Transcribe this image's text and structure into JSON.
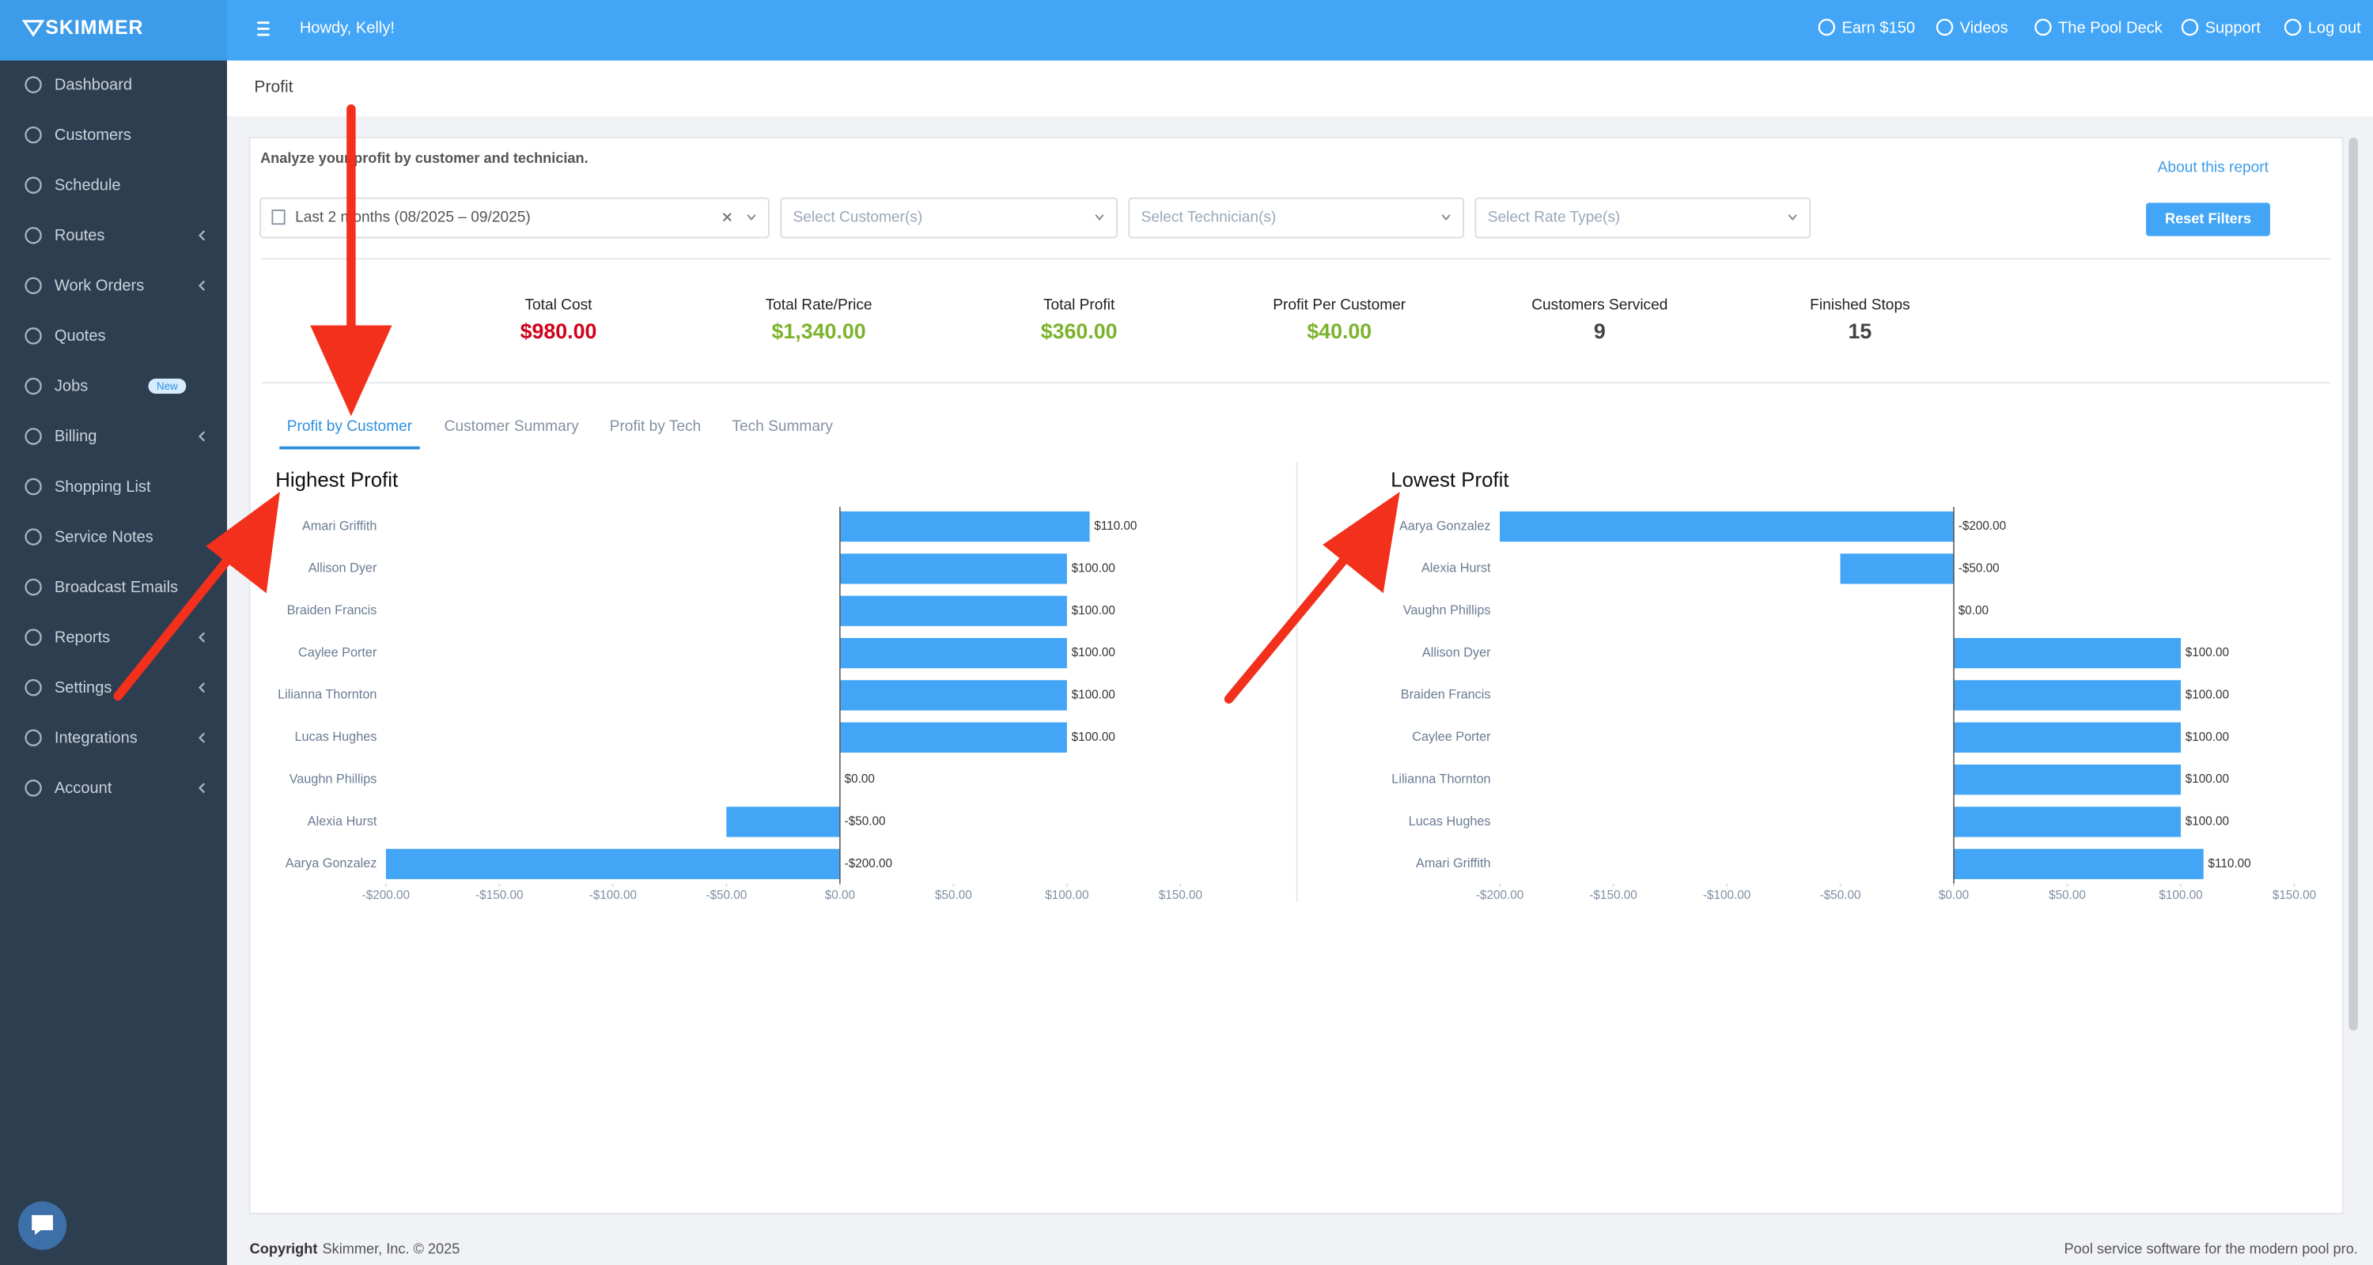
{
  "header": {
    "logo": "SKIMMER",
    "greeting": "Howdy, Kelly!",
    "nav": [
      "Earn $150",
      "Videos",
      "The Pool Deck",
      "Support",
      "Log out"
    ]
  },
  "sidebar": {
    "items": [
      {
        "label": "Dashboard"
      },
      {
        "label": "Customers"
      },
      {
        "label": "Schedule"
      },
      {
        "label": "Routes",
        "submenu": true
      },
      {
        "label": "Work Orders",
        "submenu": true
      },
      {
        "label": "Quotes"
      },
      {
        "label": "Jobs",
        "badge": "New"
      },
      {
        "label": "Billing",
        "submenu": true
      },
      {
        "label": "Shopping List"
      },
      {
        "label": "Service Notes"
      },
      {
        "label": "Broadcast Emails"
      },
      {
        "label": "Reports",
        "submenu": true
      },
      {
        "label": "Settings",
        "submenu": true
      },
      {
        "label": "Integrations",
        "submenu": true
      },
      {
        "label": "Account",
        "submenu": true
      }
    ]
  },
  "breadcrumb": "Profit",
  "report": {
    "description": "Analyze your profit by customer and technician.",
    "about_link": "About this report",
    "filters": [
      {
        "value": "Last 2 months (08/2025 – 09/2025)"
      },
      {
        "placeholder": "Select Customer(s)"
      },
      {
        "placeholder": "Select Technician(s)"
      },
      {
        "placeholder": "Select Rate Type(s)"
      }
    ],
    "reset_button": "Reset Filters",
    "stats": [
      {
        "label": "Total Cost",
        "value": "$980.00",
        "color": "#d0021b"
      },
      {
        "label": "Total Rate/Price",
        "value": "$1,340.00",
        "color": "#7cb32c"
      },
      {
        "label": "Total Profit",
        "value": "$360.00",
        "color": "#7cb32c"
      },
      {
        "label": "Profit Per Customer",
        "value": "$40.00",
        "color": "#7cb32c"
      },
      {
        "label": "Customers Serviced",
        "value": "9",
        "color": "#444444"
      },
      {
        "label": "Finished Stops",
        "value": "15",
        "color": "#444444"
      }
    ],
    "tabs": [
      "Profit by Customer",
      "Customer Summary",
      "Profit by Tech",
      "Tech Summary"
    ],
    "active_tab": 0
  },
  "chart_data": [
    {
      "type": "bar",
      "orientation": "horizontal",
      "title": "Highest Profit",
      "color": "#42a5f5",
      "categories": [
        "Amari Griffith",
        "Allison Dyer",
        "Braiden Francis",
        "Caylee Porter",
        "Lilianna Thornton",
        "Lucas Hughes",
        "Vaughn Phillips",
        "Alexia Hurst",
        "Aarya Gonzalez"
      ],
      "values": [
        110,
        100,
        100,
        100,
        100,
        100,
        0,
        -50,
        -200
      ],
      "value_labels": [
        "$110.00",
        "$100.00",
        "$100.00",
        "$100.00",
        "$100.00",
        "$100.00",
        "$0.00",
        "-$50.00",
        "-$200.00"
      ],
      "xlim": [
        -200,
        150
      ],
      "xticks": [
        {
          "value": -200,
          "label": "-$200.00"
        },
        {
          "value": -150,
          "label": "-$150.00"
        },
        {
          "value": -100,
          "label": "-$100.00"
        },
        {
          "value": -50,
          "label": "-$50.00"
        },
        {
          "value": 0,
          "label": "$0.00"
        },
        {
          "value": 50,
          "label": "$50.00"
        },
        {
          "value": 100,
          "label": "$100.00"
        },
        {
          "value": 150,
          "label": "$150.00"
        }
      ]
    },
    {
      "type": "bar",
      "orientation": "horizontal",
      "title": "Lowest Profit",
      "color": "#42a5f5",
      "categories": [
        "Aarya Gonzalez",
        "Alexia Hurst",
        "Vaughn Phillips",
        "Allison Dyer",
        "Braiden Francis",
        "Caylee Porter",
        "Lilianna Thornton",
        "Lucas Hughes",
        "Amari Griffith"
      ],
      "values": [
        -200,
        -50,
        0,
        100,
        100,
        100,
        100,
        100,
        110
      ],
      "value_labels": [
        "-$200.00",
        "-$50.00",
        "$0.00",
        "$100.00",
        "$100.00",
        "$100.00",
        "$100.00",
        "$100.00",
        "$110.00"
      ],
      "xlim": [
        -200,
        150
      ],
      "xticks": [
        {
          "value": -200,
          "label": "-$200.00"
        },
        {
          "value": -150,
          "label": "-$150.00"
        },
        {
          "value": -100,
          "label": "-$100.00"
        },
        {
          "value": -50,
          "label": "-$50.00"
        },
        {
          "value": 0,
          "label": "$0.00"
        },
        {
          "value": 50,
          "label": "$50.00"
        },
        {
          "value": 100,
          "label": "$100.00"
        },
        {
          "value": 150,
          "label": "$150.00"
        }
      ]
    }
  ],
  "footer": {
    "copyright_label": "Copyright",
    "copyright_text": "Skimmer, Inc. © 2025",
    "tagline": "Pool service software for the modern pool pro."
  }
}
